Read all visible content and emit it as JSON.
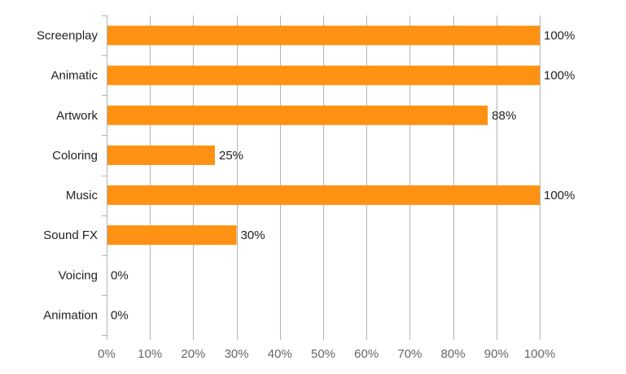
{
  "chart_data": {
    "type": "bar",
    "orientation": "horizontal",
    "categories": [
      "Screenplay",
      "Animatic",
      "Artwork",
      "Coloring",
      "Music",
      "Sound FX",
      "Voicing",
      "Animation"
    ],
    "values": [
      100,
      100,
      88,
      25,
      100,
      30,
      0,
      0
    ],
    "data_labels": [
      "100%",
      "100%",
      "88%",
      "25%",
      "100%",
      "30%",
      "0%",
      "0%"
    ],
    "x_ticks": [
      "0%",
      "10%",
      "20%",
      "30%",
      "40%",
      "50%",
      "60%",
      "70%",
      "80%",
      "90%",
      "100%"
    ],
    "xlim": [
      0,
      100
    ],
    "title": "",
    "xlabel": "",
    "ylabel": "",
    "grid": "vertical",
    "legend": "none",
    "bar_color": "#ff9212",
    "grid_color": "#b3b3b3"
  }
}
